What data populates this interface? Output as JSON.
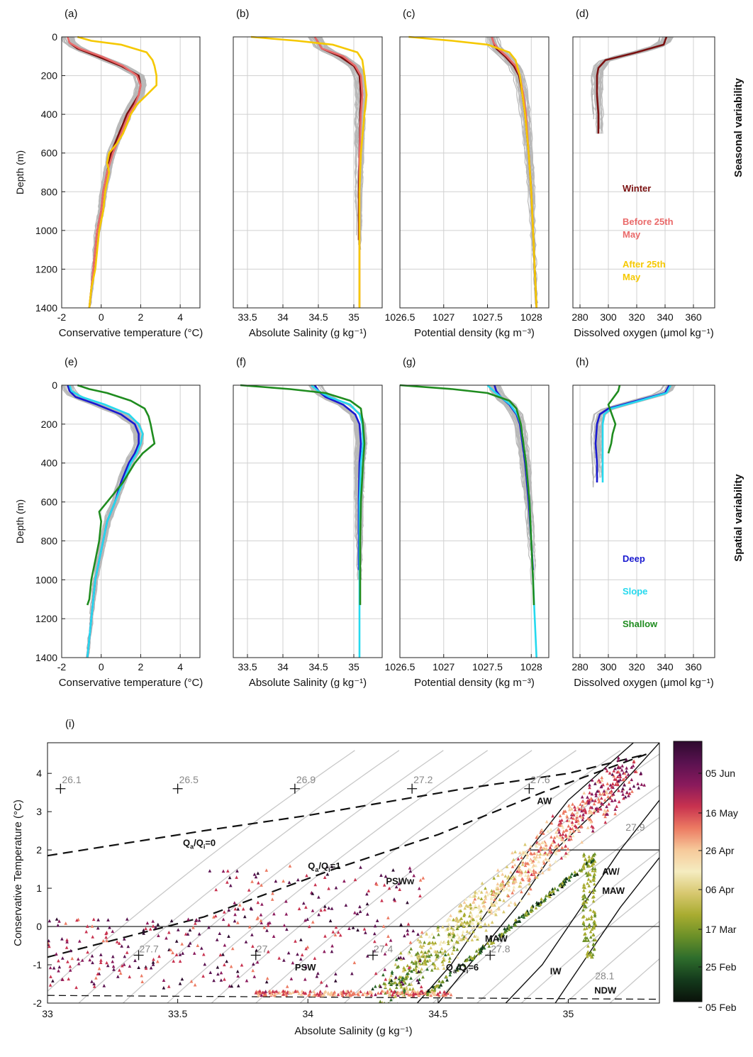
{
  "figure": {
    "row_labels": [
      "Seasonal variability",
      "Spatial variability"
    ],
    "colors": {
      "axis": "#222222",
      "grid": "#d0d0d0",
      "gray_profiles": "#b8b8b8",
      "winter": "#7a1010",
      "before": "#ea6a6a",
      "after": "#f5c800",
      "deep": "#1a1ad0",
      "slope": "#25d9ee",
      "shallow": "#1f8c1f",
      "isopycnal": "#c8c8c8"
    }
  },
  "chart_data": [
    {
      "panel": "(a)",
      "type": "line",
      "xlabel": "Conservative temperature (°C)",
      "ylabel": "Depth (m)",
      "xlim": [
        -2,
        5
      ],
      "xticks": [
        -2,
        0,
        2,
        4
      ],
      "ylim": [
        0,
        1400
      ],
      "yticks": [
        0,
        200,
        400,
        600,
        800,
        1000,
        1200,
        1400
      ],
      "legend": null,
      "series": [
        {
          "name": "Winter",
          "color": "#7a1010",
          "depth": [
            0,
            30,
            60,
            100,
            150,
            200,
            250,
            300,
            350,
            400,
            450,
            500,
            550,
            600,
            700,
            800,
            900,
            1000,
            1100,
            1200,
            1300,
            1400
          ],
          "x": [
            -1.7,
            -1.6,
            -1.2,
            -0.2,
            1.0,
            1.9,
            2.0,
            1.9,
            1.6,
            1.3,
            1.1,
            0.9,
            0.7,
            0.5,
            0.3,
            0.1,
            0,
            -0.2,
            -0.3,
            -0.4,
            -0.5,
            -0.6
          ]
        },
        {
          "name": "Before 25th May",
          "color": "#ea6a6a",
          "depth": [
            0,
            30,
            60,
            100,
            150,
            200,
            250,
            300,
            350,
            400,
            450,
            500,
            550,
            600,
            700,
            800,
            900,
            1000,
            1100,
            1200,
            1300,
            1400
          ],
          "x": [
            -1.7,
            -1.6,
            -1.1,
            0.0,
            1.1,
            1.8,
            2.0,
            1.9,
            1.7,
            1.4,
            1.2,
            1.0,
            0.8,
            0.6,
            0.3,
            0.1,
            0,
            -0.2,
            -0.3,
            -0.4,
            -0.5,
            -0.6
          ]
        },
        {
          "name": "After 25th May",
          "color": "#f5c800",
          "depth": [
            0,
            20,
            40,
            80,
            120,
            150,
            200,
            250,
            300,
            350,
            400,
            450,
            500,
            550,
            600,
            650,
            700,
            800,
            900,
            1000,
            1100,
            1200,
            1300,
            1400
          ],
          "x": [
            -1.2,
            -0.5,
            1.0,
            2.3,
            2.6,
            2.7,
            2.8,
            2.8,
            2.3,
            1.8,
            1.5,
            1.3,
            1.1,
            0.8,
            0.4,
            0.3,
            0.4,
            0.2,
            0.1,
            -0.1,
            -0.2,
            -0.3,
            -0.5,
            -0.6
          ]
        }
      ]
    },
    {
      "panel": "(b)",
      "type": "line",
      "xlabel": "Absolute Salinity (g kg⁻¹)",
      "xlim": [
        33.3,
        35.4
      ],
      "xticks": [
        33.5,
        34,
        34.5,
        35
      ],
      "ylim": [
        0,
        1400
      ],
      "series": [
        {
          "name": "Winter",
          "color": "#7a1010",
          "depth": [
            0,
            30,
            60,
            100,
            150,
            200,
            300,
            400,
            600,
            800,
            1000,
            1050
          ],
          "x": [
            34.45,
            34.5,
            34.55,
            34.8,
            35.0,
            35.08,
            35.1,
            35.09,
            35.08,
            35.07,
            35.07,
            35.07
          ]
        },
        {
          "name": "Before 25th May",
          "color": "#ea6a6a",
          "depth": [
            0,
            30,
            60,
            100,
            150,
            200,
            300,
            400,
            600,
            800,
            1000,
            1200,
            1400
          ],
          "x": [
            34.45,
            34.5,
            34.55,
            34.85,
            35.02,
            35.1,
            35.12,
            35.1,
            35.08,
            35.08,
            35.08,
            35.08,
            35.08
          ]
        },
        {
          "name": "After 25th May",
          "color": "#f5c800",
          "depth": [
            0,
            20,
            40,
            80,
            120,
            200,
            300,
            400,
            600,
            800,
            1000,
            1200,
            1400
          ],
          "x": [
            33.55,
            34.2,
            34.7,
            35.05,
            35.12,
            35.15,
            35.18,
            35.15,
            35.1,
            35.08,
            35.08,
            35.08,
            35.08
          ]
        }
      ]
    },
    {
      "panel": "(c)",
      "type": "line",
      "xlabel": "Potential density (kg m⁻³)",
      "xlim": [
        1026.5,
        1028.2
      ],
      "xticks": [
        1026.5,
        1027,
        1027.5,
        1028
      ],
      "ylim": [
        0,
        1400
      ],
      "series": [
        {
          "name": "Winter",
          "color": "#7a1010",
          "depth": [
            0,
            30,
            60,
            100,
            150,
            200,
            300,
            400,
            600,
            800,
            1000,
            1200,
            1400
          ],
          "x": [
            1027.55,
            1027.57,
            1027.6,
            1027.7,
            1027.8,
            1027.86,
            1027.9,
            1027.93,
            1027.97,
            1028.0,
            1028.02,
            1028.04,
            1028.06
          ]
        },
        {
          "name": "Before 25th May",
          "color": "#ea6a6a",
          "depth": [
            0,
            30,
            60,
            100,
            150,
            200,
            300,
            400,
            600,
            800,
            1000
          ],
          "x": [
            1027.55,
            1027.57,
            1027.62,
            1027.72,
            1027.82,
            1027.87,
            1027.91,
            1027.94,
            1027.97,
            1028.0,
            1028.02
          ]
        },
        {
          "name": "After 25th May",
          "color": "#f5c800",
          "depth": [
            0,
            20,
            40,
            80,
            120,
            200,
            300,
            400,
            600,
            800,
            1000,
            1200,
            1400
          ],
          "x": [
            1026.6,
            1027.1,
            1027.5,
            1027.75,
            1027.82,
            1027.87,
            1027.9,
            1027.93,
            1027.97,
            1028.0,
            1028.02,
            1028.04,
            1028.06
          ]
        }
      ]
    },
    {
      "panel": "(d)",
      "type": "line",
      "xlabel": "Dissolved oxygen (μmol kg⁻¹)",
      "xlim": [
        275,
        375
      ],
      "xticks": [
        280,
        300,
        320,
        340,
        360
      ],
      "ylim": [
        0,
        1400
      ],
      "series": [
        {
          "name": "Winter",
          "color": "#7a1010",
          "depth": [
            0,
            40,
            80,
            120,
            160,
            200,
            300,
            400,
            500
          ],
          "x": [
            341,
            339,
            320,
            298,
            293,
            292,
            292,
            293,
            293
          ]
        }
      ],
      "legend_entries": [
        {
          "text": "Winter",
          "color": "#7a1010"
        },
        {
          "text": "Before 25th May",
          "color": "#ea6a6a"
        },
        {
          "text": "After 25th May",
          "color": "#f5c800"
        }
      ]
    },
    {
      "panel": "(e)",
      "type": "line",
      "xlabel": "Conservative temperature (°C)",
      "ylabel": "Depth (m)",
      "xlim": [
        -2,
        5
      ],
      "xticks": [
        -2,
        0,
        2,
        4
      ],
      "ylim": [
        0,
        1400
      ],
      "series": [
        {
          "name": "Deep",
          "color": "#1a1ad0",
          "depth": [
            0,
            30,
            60,
            100,
            150,
            200,
            250,
            300,
            350,
            400,
            450,
            500,
            600,
            700,
            800,
            900,
            1000,
            1100,
            1200,
            1300,
            1400
          ],
          "x": [
            -1.7,
            -1.6,
            -1.3,
            -0.2,
            1.0,
            1.7,
            1.9,
            1.9,
            1.7,
            1.4,
            1.2,
            1.0,
            0.7,
            0.3,
            0.1,
            -0.1,
            -0.3,
            -0.4,
            -0.5,
            -0.6,
            -0.7
          ]
        },
        {
          "name": "Slope",
          "color": "#25d9ee",
          "depth": [
            0,
            30,
            60,
            100,
            150,
            200,
            250,
            300,
            350,
            400,
            500,
            600,
            700,
            800,
            900,
            1000,
            1100,
            1200,
            1300,
            1400
          ],
          "x": [
            -1.6,
            -1.5,
            -1.0,
            0.2,
            1.4,
            1.9,
            2.1,
            2.0,
            1.8,
            1.5,
            1.1,
            0.7,
            0.3,
            0.1,
            -0.1,
            -0.3,
            -0.4,
            -0.5,
            -0.6,
            -0.7
          ]
        },
        {
          "name": "Shallow",
          "color": "#1f8c1f",
          "depth": [
            0,
            20,
            40,
            80,
            120,
            160,
            200,
            250,
            300,
            350,
            400,
            500,
            600,
            650,
            700,
            800,
            900,
            1000,
            1100,
            1130
          ],
          "x": [
            -1.2,
            -0.6,
            0.3,
            1.5,
            2.2,
            2.4,
            2.5,
            2.6,
            2.7,
            2.1,
            1.7,
            1.1,
            0.3,
            -0.1,
            0,
            -0.1,
            -0.3,
            -0.5,
            -0.6,
            -0.7
          ]
        }
      ]
    },
    {
      "panel": "(f)",
      "type": "line",
      "xlabel": "Absolute Salinity (g kg⁻¹)",
      "xlim": [
        33.3,
        35.4
      ],
      "xticks": [
        33.5,
        34,
        34.5,
        35
      ],
      "ylim": [
        0,
        1400
      ],
      "series": [
        {
          "name": "Deep",
          "color": "#1a1ad0",
          "depth": [
            0,
            30,
            60,
            100,
            150,
            200,
            300,
            400,
            600,
            800,
            950
          ],
          "x": [
            34.45,
            34.5,
            34.6,
            34.85,
            35.02,
            35.08,
            35.1,
            35.08,
            35.07,
            35.07,
            35.07
          ]
        },
        {
          "name": "Slope",
          "color": "#25d9ee",
          "depth": [
            0,
            30,
            60,
            100,
            150,
            200,
            300,
            400,
            600,
            800,
            1000,
            1200,
            1400
          ],
          "x": [
            34.4,
            34.5,
            34.65,
            34.95,
            35.08,
            35.12,
            35.13,
            35.1,
            35.08,
            35.08,
            35.08,
            35.08,
            35.08
          ]
        },
        {
          "name": "Shallow",
          "color": "#1f8c1f",
          "depth": [
            0,
            20,
            40,
            80,
            120,
            200,
            300,
            400,
            600,
            800,
            1000,
            1130
          ],
          "x": [
            33.4,
            34.1,
            34.6,
            34.95,
            35.1,
            35.13,
            35.15,
            35.13,
            35.1,
            35.09,
            35.09,
            35.09
          ]
        }
      ]
    },
    {
      "panel": "(g)",
      "type": "line",
      "xlabel": "Potential density (kg m⁻³)",
      "xlim": [
        1026.5,
        1028.2
      ],
      "xticks": [
        1026.5,
        1027,
        1027.5,
        1028
      ],
      "ylim": [
        0,
        1400
      ],
      "series": [
        {
          "name": "Deep",
          "color": "#1a1ad0",
          "depth": [
            0,
            30,
            60,
            100,
            150,
            200,
            300,
            400,
            600,
            800,
            950
          ],
          "x": [
            1027.58,
            1027.6,
            1027.65,
            1027.75,
            1027.83,
            1027.87,
            1027.9,
            1027.93,
            1027.97,
            1028.0,
            1028.02
          ]
        },
        {
          "name": "Slope",
          "color": "#25d9ee",
          "depth": [
            0,
            30,
            60,
            100,
            150,
            200,
            300,
            400,
            600,
            800,
            1000,
            1200,
            1400
          ],
          "x": [
            1027.5,
            1027.57,
            1027.65,
            1027.76,
            1027.84,
            1027.88,
            1027.91,
            1027.94,
            1027.98,
            1028.0,
            1028.02,
            1028.04,
            1028.06
          ]
        },
        {
          "name": "Shallow",
          "color": "#1f8c1f",
          "depth": [
            0,
            20,
            40,
            80,
            120,
            200,
            300,
            400,
            600,
            800,
            1000,
            1130
          ],
          "x": [
            1026.5,
            1027.1,
            1027.5,
            1027.75,
            1027.83,
            1027.88,
            1027.91,
            1027.94,
            1027.98,
            1028.0,
            1028.02,
            1028.03
          ]
        }
      ]
    },
    {
      "panel": "(h)",
      "type": "line",
      "xlabel": "Dissolved oxygen (μmol kg⁻¹)",
      "xlim": [
        275,
        375
      ],
      "xticks": [
        280,
        300,
        320,
        340,
        360
      ],
      "ylim": [
        0,
        1400
      ],
      "series": [
        {
          "name": "Deep",
          "color": "#1a1ad0",
          "depth": [
            0,
            40,
            80,
            120,
            150,
            200,
            300,
            400,
            500
          ],
          "x": [
            343,
            340,
            320,
            300,
            294,
            292,
            291,
            292,
            292
          ]
        },
        {
          "name": "Slope",
          "color": "#25d9ee",
          "depth": [
            0,
            40,
            80,
            120,
            150,
            200,
            300,
            400,
            500
          ],
          "x": [
            344,
            341,
            322,
            302,
            297,
            296,
            296,
            296,
            296
          ]
        },
        {
          "name": "Shallow",
          "color": "#1f8c1f",
          "depth": [
            0,
            30,
            60,
            100,
            140,
            200,
            250,
            300,
            350
          ],
          "x": [
            308,
            307,
            304,
            300,
            302,
            305,
            303,
            302,
            300
          ]
        }
      ],
      "legend_entries": [
        {
          "text": "Deep",
          "color": "#1a1ad0"
        },
        {
          "text": "Slope",
          "color": "#25d9ee"
        },
        {
          "text": "Shallow",
          "color": "#1f8c1f"
        }
      ]
    },
    {
      "panel": "(i)",
      "type": "scatter",
      "xlabel": "Absolute Salinity (g kg⁻¹)",
      "ylabel": "Conservative Temperature (°C)",
      "xlim": [
        33,
        35.35
      ],
      "xticks": [
        33,
        33.5,
        34,
        34.5,
        35
      ],
      "ylim": [
        -2,
        4.8
      ],
      "yticks": [
        -2,
        -1,
        0,
        1,
        2,
        3,
        4
      ],
      "colorbar": {
        "ticks": [
          "05 Jun",
          "16 May",
          "26 Apr",
          "06 Apr",
          "17 Mar",
          "25 Feb",
          "05 Feb"
        ],
        "colors": [
          "#2d0a2e",
          "#5a1250",
          "#8a1a5c",
          "#c8324f",
          "#ec7a62",
          "#f6c99a",
          "#f5ecc0",
          "#d8c870",
          "#a8ac30",
          "#6b9028",
          "#2e6d2c",
          "#143a1c",
          "#0a120a"
        ]
      },
      "isopycnal_labels_top": [
        "26.1",
        "26.5",
        "26.9",
        "27.2",
        "27.6"
      ],
      "isopycnal_labels_bottom": [
        "27.7",
        "27",
        "27.4",
        "27.8",
        "28.1"
      ],
      "isopycnal_label_right": "27.9",
      "mixing_line_labels": [
        "Qa/Qi=0",
        "Qa/Qi=1",
        "Qa/Qi=6"
      ],
      "water_masses": [
        "AW",
        "AW/ MAW",
        "PSWw",
        "MAW",
        "PSW",
        "IW",
        "NDW"
      ],
      "reference_lines": {
        "t0": 0,
        "t2": 2,
        "freezing": -1.85
      }
    }
  ]
}
